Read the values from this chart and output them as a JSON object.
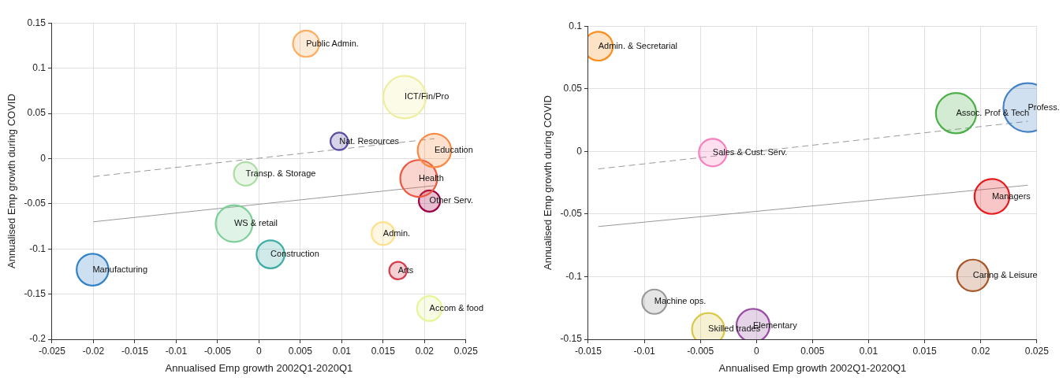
{
  "chart_data": [
    {
      "type": "bubble",
      "xlabel": "Annualised Emp growth 2002Q1-2020Q1",
      "ylabel": "Annualised Emp growth during COVID",
      "xlim": [
        -0.025,
        0.025
      ],
      "xticks": [
        -0.025,
        -0.02,
        -0.015,
        -0.01,
        -0.005,
        0,
        0.005,
        0.01,
        0.015,
        0.02,
        0.025
      ],
      "ylim": [
        -0.2,
        0.15
      ],
      "yticks": [
        -0.2,
        -0.15,
        -0.1,
        -0.05,
        0,
        0.05,
        0.1,
        0.15
      ],
      "grid": true,
      "legend": false,
      "series": [
        {
          "name": "Public Admin.",
          "color": "#fdae61",
          "x": [
            0.0057
          ],
          "values": [
            0.127
          ],
          "sizes": [
            0.38
          ]
        },
        {
          "name": "ICT/Fin/Pro",
          "color": "#eeeea0",
          "x": [
            0.0176
          ],
          "values": [
            0.068
          ],
          "sizes": [
            1
          ]
        },
        {
          "name": "Nat. Resources",
          "color": "#5e4fa2",
          "x": [
            0.0097
          ],
          "values": [
            0.019
          ],
          "sizes": [
            0.17
          ]
        },
        {
          "name": "Education",
          "color": "#f98a45",
          "x": [
            0.0212
          ],
          "values": [
            0.009
          ],
          "sizes": [
            0.62
          ]
        },
        {
          "name": "Transp. & Storage",
          "color": "#abdda4",
          "x": [
            -0.0016
          ],
          "values": [
            -0.017
          ],
          "sizes": [
            0.31
          ]
        },
        {
          "name": "Health",
          "color": "#ec5840",
          "x": [
            0.0193
          ],
          "values": [
            -0.022
          ],
          "sizes": [
            0.75
          ]
        },
        {
          "name": "Other Serv.",
          "color": "#9e0142",
          "x": [
            0.0206
          ],
          "values": [
            -0.047
          ],
          "sizes": [
            0.25
          ]
        },
        {
          "name": "WS & retail",
          "color": "#80cf9a",
          "x": [
            -0.003
          ],
          "values": [
            -0.072
          ],
          "sizes": [
            0.75
          ]
        },
        {
          "name": "Admin.",
          "color": "#fee08b",
          "x": [
            0.015
          ],
          "values": [
            -0.083
          ],
          "sizes": [
            0.29
          ]
        },
        {
          "name": "Construction",
          "color": "#3fada5",
          "x": [
            0.0014
          ],
          "values": [
            -0.106
          ],
          "sizes": [
            0.43
          ]
        },
        {
          "name": "Manufacturing",
          "color": "#3382c6",
          "x": [
            -0.0201
          ],
          "values": [
            -0.123
          ],
          "sizes": [
            0.56
          ]
        },
        {
          "name": "Arts",
          "color": "#d53e4f",
          "x": [
            0.0168
          ],
          "values": [
            -0.124
          ],
          "sizes": [
            0.17
          ]
        },
        {
          "name": "Accom & food",
          "color": "#e6f598",
          "x": [
            0.0206
          ],
          "values": [
            -0.166
          ],
          "sizes": [
            0.34
          ]
        },
        {
          "type": "line",
          "color": "#999999",
          "line_style": "dashed",
          "x": [
            -0.02,
            0.0212
          ],
          "values": [
            -0.02,
            0.022
          ]
        },
        {
          "type": "line",
          "color": "#999999",
          "x": [
            -0.02,
            0.0212
          ],
          "values": [
            -0.07,
            -0.03
          ]
        }
      ]
    },
    {
      "type": "bubble",
      "xlabel": "Annualised Emp growth 2002Q1-2020Q1",
      "ylabel": "Annualised Emp growth during COVID",
      "xlim": [
        -0.015,
        0.025
      ],
      "xticks": [
        -0.015,
        -0.01,
        -0.005,
        0,
        0.005,
        0.01,
        0.015,
        0.02,
        0.025
      ],
      "ylim": [
        -0.15,
        0.1
      ],
      "yticks": [
        -0.15,
        -0.1,
        -0.05,
        0,
        0.05,
        0.1
      ],
      "grid": true,
      "legend": false,
      "series": [
        {
          "name": "Admin. & Secretarial",
          "color": "#fd8d1c",
          "x": [
            -0.0141
          ],
          "values": [
            0.084
          ],
          "sizes": [
            0.35
          ]
        },
        {
          "name": "Profess.",
          "color": "#4682c4",
          "x": [
            0.0242
          ],
          "values": [
            0.035
          ],
          "sizes": [
            1
          ]
        },
        {
          "name": "Assoc. Prof & Tech",
          "color": "#4daf4a",
          "x": [
            0.0178
          ],
          "values": [
            0.0305
          ],
          "sizes": [
            0.68
          ]
        },
        {
          "name": "Sales & Cust. Serv.",
          "color": "#f781bf",
          "x": [
            -0.0039
          ],
          "values": [
            -0.001
          ],
          "sizes": [
            0.32
          ]
        },
        {
          "name": "Managers",
          "color": "#e41a1c",
          "x": [
            0.021
          ],
          "values": [
            -0.036
          ],
          "sizes": [
            0.51
          ]
        },
        {
          "name": "Caring & Leisure",
          "color": "#a65628",
          "x": [
            0.0193
          ],
          "values": [
            -0.099
          ],
          "sizes": [
            0.42
          ]
        },
        {
          "name": "Machine ops.",
          "color": "#999999",
          "x": [
            -0.0091
          ],
          "values": [
            -0.12
          ],
          "sizes": [
            0.25
          ]
        },
        {
          "name": "Skilled trades",
          "color": "#d9c84a",
          "x": [
            -0.0043
          ],
          "values": [
            -0.142
          ],
          "sizes": [
            0.44
          ]
        },
        {
          "name": "Elementary",
          "color": "#984ea3",
          "x": [
            -0.0003
          ],
          "values": [
            -0.139
          ],
          "sizes": [
            0.46
          ]
        },
        {
          "type": "line",
          "color": "#999999",
          "line_style": "dashed",
          "x": [
            -0.0141,
            0.0242
          ],
          "values": [
            -0.014,
            0.024
          ]
        },
        {
          "type": "line",
          "color": "#999999",
          "x": [
            -0.0141,
            0.0242
          ],
          "values": [
            -0.06,
            -0.027
          ]
        }
      ]
    }
  ]
}
